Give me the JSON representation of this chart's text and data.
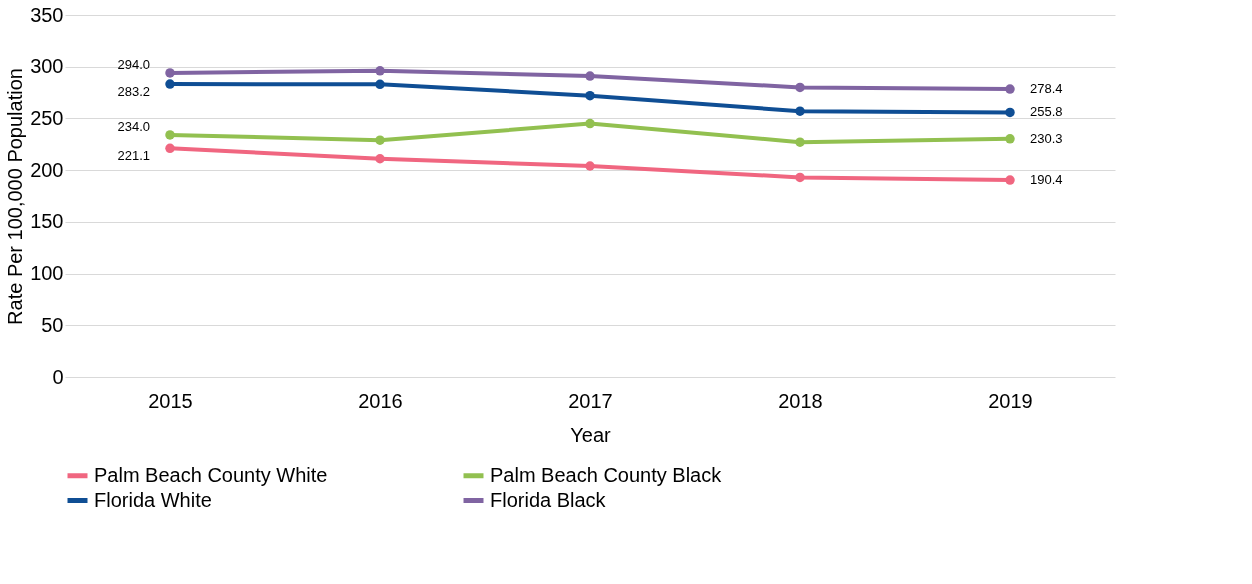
{
  "chart_data": {
    "type": "line",
    "xlabel": "Year",
    "ylabel": "Rate Per 100,000 Population",
    "categories": [
      "2015",
      "2016",
      "2017",
      "2018",
      "2019"
    ],
    "ylim": [
      0,
      350
    ],
    "yticks": [
      0,
      50,
      100,
      150,
      200,
      250,
      300,
      350
    ],
    "grid": "y",
    "legend": "bottom",
    "marker": "circle",
    "line_style": "solid",
    "series": [
      {
        "name": "Palm  Beach County White",
        "color": "#f06680",
        "values": [
          221.1,
          211,
          204,
          193,
          190.4
        ],
        "value_labels": [
          "221.1",
          null,
          null,
          null,
          "190.4"
        ]
      },
      {
        "name": "Palm Beach County Black",
        "color": "#92c050",
        "values": [
          234.0,
          229,
          245,
          227,
          230.3
        ],
        "value_labels": [
          "234.0",
          null,
          null,
          null,
          "230.3"
        ]
      },
      {
        "name": "Florida White",
        "color": "#0f4e94",
        "values": [
          283.2,
          283,
          272,
          257,
          255.8
        ],
        "value_labels": [
          "283.2",
          null,
          null,
          null,
          "255.8"
        ]
      },
      {
        "name": "Florida Black",
        "color": "#8064a2",
        "values": [
          294.0,
          296,
          291,
          280,
          278.4
        ],
        "value_labels": [
          "294.0",
          null,
          null,
          null,
          "278.4"
        ]
      }
    ]
  }
}
